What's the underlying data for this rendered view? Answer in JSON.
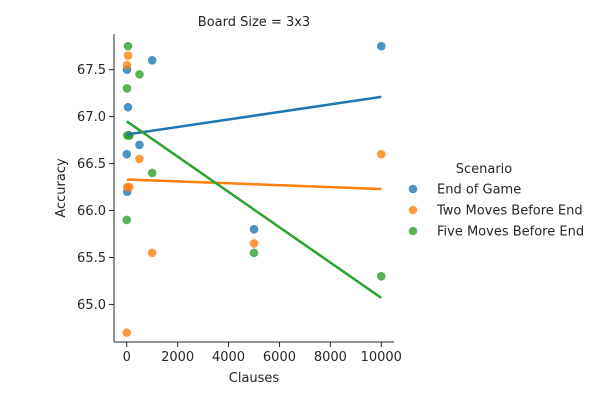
{
  "chart_data": {
    "type": "scatter",
    "title": "Board Size = 3x3",
    "xlabel": "Clauses",
    "ylabel": "Accuracy",
    "xlim": [
      -500,
      10500
    ],
    "ylim": [
      64.6,
      67.88
    ],
    "xticks": [
      0,
      2000,
      4000,
      6000,
      8000,
      10000
    ],
    "yticks": [
      65.0,
      65.5,
      66.0,
      66.5,
      67.0,
      67.5
    ],
    "xtick_labels": [
      "0",
      "2000",
      "4000",
      "6000",
      "8000",
      "10000"
    ],
    "ytick_labels": [
      "65.0",
      "65.5",
      "66.0",
      "66.5",
      "67.0",
      "67.5"
    ],
    "grid": false,
    "legend": {
      "title": "Scenario",
      "placement": "right"
    },
    "series": [
      {
        "name": "End of Game",
        "color": "#1f77b4",
        "x": [
          1,
          10,
          20,
          50,
          100,
          500,
          1000,
          5000,
          10000
        ],
        "y": [
          66.6,
          67.5,
          66.2,
          67.1,
          66.8,
          66.7,
          67.6,
          65.8,
          67.75
        ],
        "fit": {
          "x": [
            1,
            10000
          ],
          "y": [
            66.81,
            67.21
          ]
        }
      },
      {
        "name": "Two Moves Before End",
        "color": "#ff7f0e",
        "x": [
          1,
          10,
          20,
          50,
          100,
          500,
          1000,
          5000,
          10000
        ],
        "y": [
          64.7,
          67.55,
          66.25,
          67.65,
          66.25,
          66.55,
          65.55,
          65.65,
          66.6
        ],
        "fit": {
          "x": [
            1,
            10000
          ],
          "y": [
            66.33,
            66.23
          ]
        }
      },
      {
        "name": "Five Moves Before End",
        "color": "#2ca02c",
        "x": [
          1,
          10,
          20,
          50,
          100,
          500,
          1000,
          5000,
          10000
        ],
        "y": [
          65.9,
          67.3,
          66.8,
          67.75,
          66.8,
          67.45,
          66.4,
          65.55,
          65.3
        ],
        "fit": {
          "x": [
            1,
            10000
          ],
          "y": [
            66.95,
            65.07
          ]
        }
      }
    ]
  }
}
